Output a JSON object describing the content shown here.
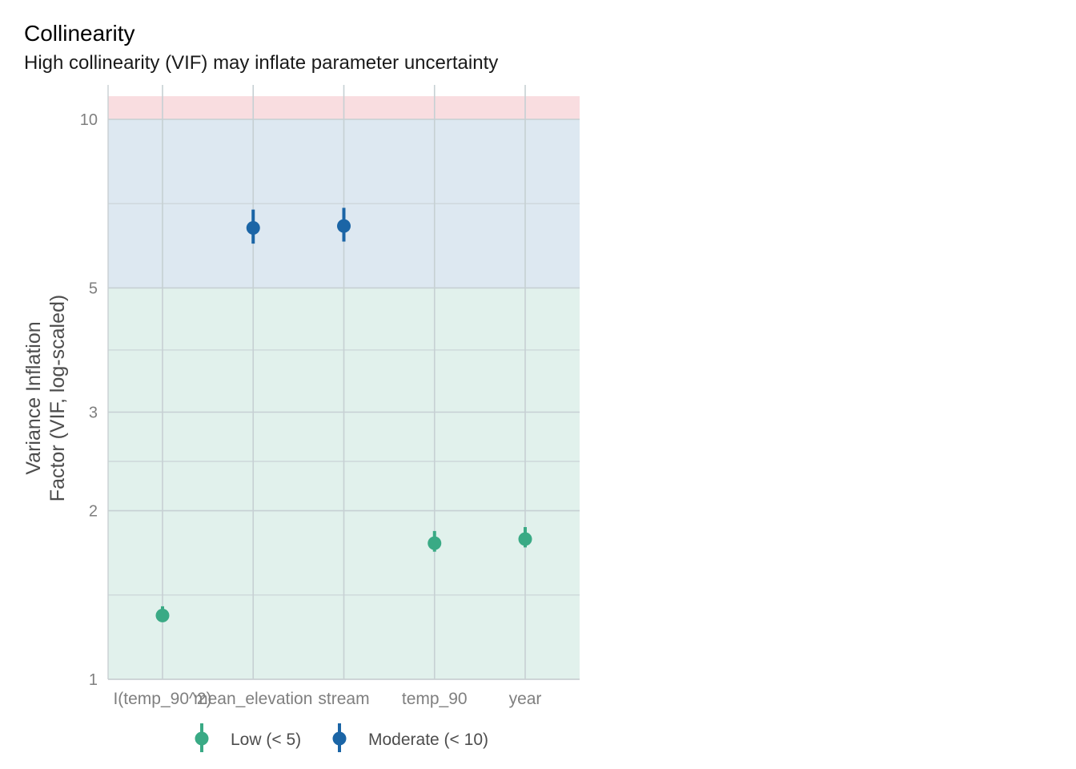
{
  "chart_data": {
    "type": "scatter",
    "title": "Collinearity",
    "subtitle": "High collinearity (VIF) may inflate parameter uncertainty",
    "xlabel": "",
    "ylabel_lines": [
      "Variance Inflation",
      "Factor (VIF, log-scaled)"
    ],
    "y_scale": "log",
    "ylim": [
      1,
      11
    ],
    "y_ticks": [
      1,
      2,
      3,
      5,
      10
    ],
    "categories": [
      "I(temp_90^2)",
      "mean_elevation",
      "stream",
      "temp_90",
      "year"
    ],
    "points": [
      {
        "term": "I(temp_90^2)",
        "vif": 1.3,
        "ci_low": 1.27,
        "ci_high": 1.35,
        "group": "Low (< 5)"
      },
      {
        "term": "mean_elevation",
        "vif": 6.4,
        "ci_low": 6.0,
        "ci_high": 6.9,
        "group": "Moderate (< 10)"
      },
      {
        "term": "stream",
        "vif": 6.45,
        "ci_low": 6.05,
        "ci_high": 6.95,
        "group": "Moderate (< 10)"
      },
      {
        "term": "temp_90",
        "vif": 1.75,
        "ci_low": 1.69,
        "ci_high": 1.84,
        "group": "Low (< 5)"
      },
      {
        "term": "year",
        "vif": 1.78,
        "ci_low": 1.72,
        "ci_high": 1.87,
        "group": "Low (< 5)"
      }
    ],
    "bands": [
      {
        "name": "low",
        "from": 1,
        "to": 5,
        "color": "#e1f1ec"
      },
      {
        "name": "moderate",
        "from": 5,
        "to": 10,
        "color": "#dde8f1"
      },
      {
        "name": "high",
        "from": 10,
        "to": 11,
        "color": "#f9dde0"
      }
    ],
    "legend": {
      "position": "bottom",
      "entries": [
        {
          "label": "Low (< 5)",
          "color": "#3aaa85"
        },
        {
          "label": "Moderate (< 10)",
          "color": "#1b65a6"
        }
      ]
    }
  }
}
